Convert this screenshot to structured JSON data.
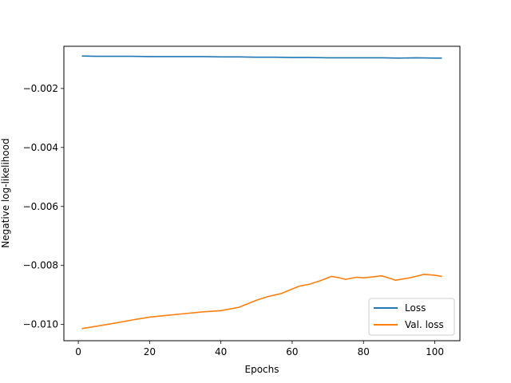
{
  "chart_data": {
    "type": "line",
    "title": "",
    "xlabel": "Epochs",
    "ylabel": "Negative log-likelihood",
    "xlim": [
      -4.05,
      107.05
    ],
    "ylim": [
      -0.01055,
      -0.00057
    ],
    "xticks": [
      0,
      20,
      40,
      60,
      80,
      100
    ],
    "xtick_labels": [
      "0",
      "20",
      "40",
      "60",
      "80",
      "100"
    ],
    "yticks": [
      -0.002,
      -0.004,
      -0.006,
      -0.008,
      -0.01
    ],
    "ytick_labels": [
      "−0.002",
      "−0.004",
      "−0.006",
      "−0.008",
      "−0.010"
    ],
    "grid": false,
    "legend_position": "lower right",
    "series": [
      {
        "name": "Loss",
        "color": "#1f77b4",
        "x": [
          1,
          5,
          10,
          15,
          20,
          25,
          30,
          35,
          40,
          45,
          50,
          55,
          60,
          65,
          70,
          75,
          80,
          85,
          90,
          95,
          100,
          102
        ],
        "y": [
          -0.0009,
          -0.00091,
          -0.00091,
          -0.00091,
          -0.00092,
          -0.00092,
          -0.00092,
          -0.00092,
          -0.00093,
          -0.00093,
          -0.00094,
          -0.00094,
          -0.00095,
          -0.00095,
          -0.00096,
          -0.00096,
          -0.00096,
          -0.00096,
          -0.00097,
          -0.00096,
          -0.00097,
          -0.00097
        ]
      },
      {
        "name": "Val. loss",
        "color": "#ff7f0e",
        "x": [
          1,
          5,
          10,
          15,
          20,
          25,
          30,
          35,
          40,
          45,
          50,
          53,
          57,
          60,
          62,
          65,
          68,
          71,
          73,
          75,
          78,
          80,
          83,
          85,
          87,
          89,
          91,
          93,
          95,
          97,
          100,
          102
        ],
        "y": [
          -0.01014,
          -0.01006,
          -0.00996,
          -0.00985,
          -0.00975,
          -0.00969,
          -0.00963,
          -0.00957,
          -0.00953,
          -0.00942,
          -0.00918,
          -0.00906,
          -0.00895,
          -0.0088,
          -0.0087,
          -0.00863,
          -0.00851,
          -0.00837,
          -0.00841,
          -0.00847,
          -0.0084,
          -0.00842,
          -0.00838,
          -0.00835,
          -0.00842,
          -0.0085,
          -0.00846,
          -0.00842,
          -0.00836,
          -0.0083,
          -0.00833,
          -0.00837
        ]
      }
    ]
  }
}
